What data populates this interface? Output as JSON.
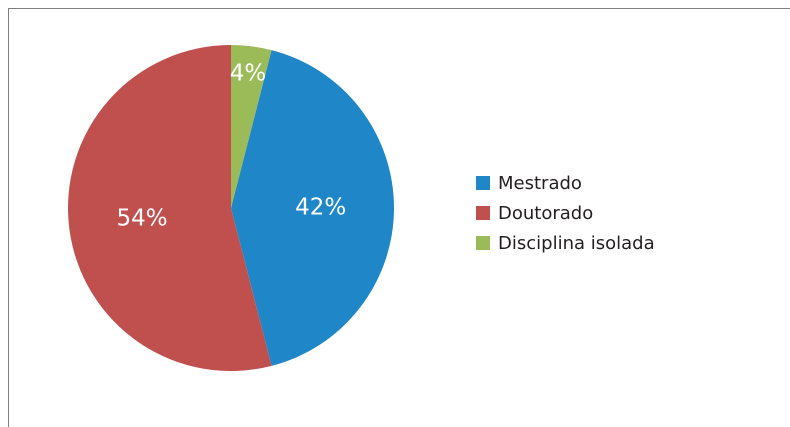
{
  "chart_data": {
    "type": "pie",
    "categories": [
      "Mestrado",
      "Doutorado",
      "Disciplina isolada"
    ],
    "values": [
      42,
      54,
      4
    ],
    "value_labels": [
      "42%",
      "54%",
      "4%"
    ],
    "colors": [
      "#1f87c8",
      "#c0504d",
      "#9bbb59"
    ],
    "legend": "right"
  }
}
